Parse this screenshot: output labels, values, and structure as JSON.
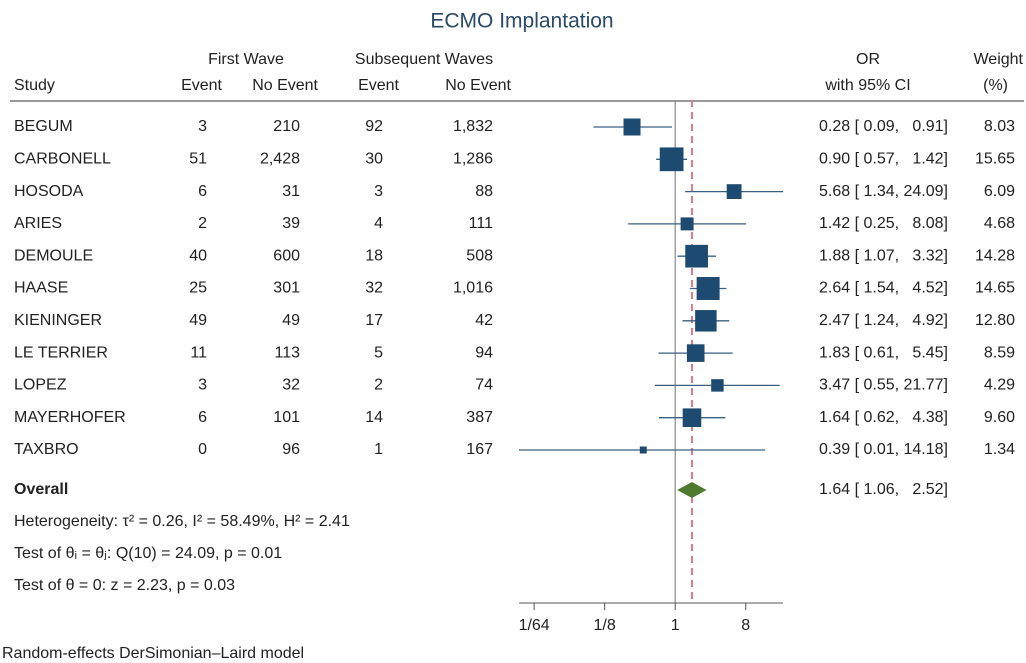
{
  "chart_data": {
    "type": "forest",
    "title": "ECMO Implantation",
    "group_headers": [
      "First Wave",
      "Subsequent Waves"
    ],
    "column_headers": [
      "Study",
      "Event",
      "No Event",
      "Event",
      "No Event"
    ],
    "or_header": [
      "OR",
      "with 95% CI"
    ],
    "weight_header": [
      "Weight",
      "(%)"
    ],
    "studies": [
      "BEGUM",
      "CARBONELL",
      "HOSODA",
      "ARIES",
      "DEMOULE",
      "HAASE",
      "KIENINGER",
      "LE TERRIER",
      "LOPEZ",
      "MAYERHOFER",
      "TAXBRO"
    ],
    "first_event": [
      "3",
      "51",
      "6",
      "2",
      "40",
      "25",
      "49",
      "11",
      "3",
      "6",
      "0"
    ],
    "first_no_event": [
      "210",
      "2,428",
      "31",
      "39",
      "600",
      "301",
      "49",
      "113",
      "32",
      "101",
      "96"
    ],
    "subsequent_event": [
      "92",
      "30",
      "3",
      "4",
      "18",
      "32",
      "17",
      "5",
      "2",
      "14",
      "1"
    ],
    "subsequent_no_event": [
      "1,832",
      "1,286",
      "88",
      "111",
      "508",
      "1,016",
      "42",
      "94",
      "74",
      "387",
      "167"
    ],
    "or": [
      0.28,
      0.9,
      5.68,
      1.42,
      1.88,
      2.64,
      2.47,
      1.83,
      3.47,
      1.64,
      0.39
    ],
    "ci_low": [
      0.09,
      0.57,
      1.34,
      0.25,
      1.07,
      1.54,
      1.24,
      0.61,
      0.55,
      0.62,
      0.01
    ],
    "ci_high": [
      0.91,
      1.42,
      24.09,
      8.08,
      3.32,
      4.52,
      4.92,
      5.45,
      21.77,
      4.38,
      14.18
    ],
    "ci_labels": [
      "0.28 [ 0.09,   0.91]",
      "0.90 [ 0.57,   1.42]",
      "5.68 [ 1.34, 24.09]",
      "1.42 [ 0.25,   8.08]",
      "1.88 [ 1.07,   3.32]",
      "2.64 [ 1.54,   4.52]",
      "2.47 [ 1.24,   4.92]",
      "1.83 [ 0.61,   5.45]",
      "3.47 [ 0.55, 21.77]",
      "1.64 [ 0.62,   4.38]",
      "0.39 [ 0.01, 14.18]"
    ],
    "weight": [
      8.03,
      15.65,
      6.09,
      4.68,
      14.28,
      14.65,
      12.8,
      8.59,
      4.29,
      9.6,
      1.34
    ],
    "weight_labels": [
      "8.03",
      "15.65",
      "6.09",
      "4.68",
      "14.28",
      "14.65",
      "12.80",
      "8.59",
      "4.29",
      "9.60",
      "1.34"
    ],
    "overall": {
      "label": "Overall",
      "or": 1.64,
      "ci_low": 1.06,
      "ci_high": 2.52,
      "ci_label": "1.64 [ 1.06,   2.52]"
    },
    "notes": [
      "Heterogeneity: τ² = 0.26, I² = 58.49%, H² = 2.41",
      "Test of θᵢ = θⱼ: Q(10) = 24.09, p = 0.01",
      "Test of θ = 0: z = 2.23, p = 0.03"
    ],
    "footer": "Random-effects DerSimonian–Laird model",
    "reference": 1,
    "log_scale": true,
    "xlim": [
      0.01,
      24
    ],
    "xticks": [
      {
        "value": 0.015625,
        "label": "1/64"
      },
      {
        "value": 0.125,
        "label": "1/8"
      },
      1,
      8
    ],
    "square_color": "#1c4a70",
    "line_color": "#3a5f82",
    "diamond_color": "#4e7a2e",
    "overall_line_color": "#e07a8a"
  }
}
